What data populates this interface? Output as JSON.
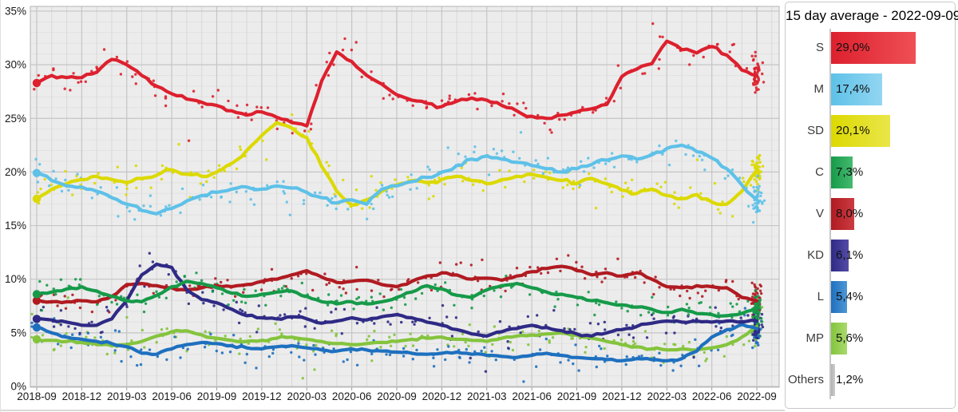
{
  "legend": {
    "title": "15 day average - 2022-09-09",
    "entries": [
      {
        "label": "S",
        "value": "29,0%",
        "value_num": 29.0,
        "color": "#dd202e",
        "color_light": "#ef4f55"
      },
      {
        "label": "M",
        "value": "17,4%",
        "value_num": 17.4,
        "color": "#5ec1e8",
        "color_light": "#92d6f2"
      },
      {
        "label": "SD",
        "value": "20,1%",
        "value_num": 20.1,
        "color": "#dcd900",
        "color_light": "#eae64a"
      },
      {
        "label": "C",
        "value": "7,3%",
        "value_num": 7.3,
        "color": "#169a49",
        "color_light": "#45ba70"
      },
      {
        "label": "V",
        "value": "8,0%",
        "value_num": 8.0,
        "color": "#b01b21",
        "color_light": "#cb3b41"
      },
      {
        "label": "KD",
        "value": "6,1%",
        "value_num": 6.1,
        "color": "#2f2a85",
        "color_light": "#534ba6"
      },
      {
        "label": "L",
        "value": "5,4%",
        "value_num": 5.4,
        "color": "#1e70bf",
        "color_light": "#4e97d4"
      },
      {
        "label": "MP",
        "value": "5,6%",
        "value_num": 5.6,
        "color": "#84c43d",
        "color_light": "#a8da6d"
      },
      {
        "label": "Others",
        "value": "1,2%",
        "value_num": 1.2,
        "color": "#b2b2b2",
        "color_light": "#cdcdcd"
      }
    ]
  },
  "chart_data": {
    "type": "line",
    "title": "",
    "xlabel": "",
    "ylabel": "",
    "ylim": [
      0,
      35
    ],
    "grid": true,
    "legend_position": "right",
    "background": "#ececec",
    "y_tick_labels": [
      "0%",
      "5%",
      "10%",
      "15%",
      "20%",
      "25%",
      "30%",
      "35%"
    ],
    "x_tick_labels": [
      "2018-09",
      "2018-12",
      "2019-03",
      "2019-06",
      "2019-09",
      "2019-12",
      "2020-03",
      "2020-06",
      "2020-09",
      "2020-12",
      "2021-03",
      "2021-06",
      "2021-09",
      "2021-12",
      "2022-03",
      "2022-06",
      "2022-09"
    ],
    "x": [
      "2018-09",
      "2018-10",
      "2018-11",
      "2018-12",
      "2019-01",
      "2019-02",
      "2019-03",
      "2019-04",
      "2019-05",
      "2019-06",
      "2019-07",
      "2019-08",
      "2019-09",
      "2019-10",
      "2019-11",
      "2019-12",
      "2020-01",
      "2020-02",
      "2020-03",
      "2020-04",
      "2020-05",
      "2020-06",
      "2020-07",
      "2020-08",
      "2020-09",
      "2020-10",
      "2020-11",
      "2020-12",
      "2021-01",
      "2021-02",
      "2021-03",
      "2021-04",
      "2021-05",
      "2021-06",
      "2021-07",
      "2021-08",
      "2021-09",
      "2021-10",
      "2021-11",
      "2021-12",
      "2022-01",
      "2022-02",
      "2022-03",
      "2022-04",
      "2022-05",
      "2022-06",
      "2022-07",
      "2022-08",
      "2022-09"
    ],
    "series": [
      {
        "name": "S",
        "color": "#dd202e",
        "values": [
          28.3,
          29.0,
          28.8,
          28.8,
          29.3,
          30.5,
          30.0,
          29.0,
          28.0,
          27.3,
          26.8,
          26.5,
          26.2,
          25.7,
          25.3,
          25.6,
          25.1,
          24.6,
          24.3,
          28.5,
          31.2,
          30.3,
          29.0,
          28.2,
          27.2,
          26.7,
          26.4,
          26.1,
          26.6,
          26.9,
          26.7,
          26.2,
          25.7,
          25.2,
          25.0,
          25.3,
          25.6,
          25.9,
          26.3,
          28.9,
          29.6,
          30.1,
          32.2,
          31.4,
          31.1,
          31.7,
          30.9,
          29.5,
          29.0
        ]
      },
      {
        "name": "M",
        "color": "#5ec1e8",
        "values": [
          19.9,
          19.2,
          18.7,
          18.6,
          18.2,
          17.6,
          17.0,
          16.4,
          16.1,
          16.6,
          17.3,
          17.8,
          18.1,
          18.4,
          18.6,
          18.4,
          18.7,
          18.5,
          18.1,
          17.6,
          17.1,
          17.4,
          17.0,
          18.4,
          18.7,
          19.1,
          19.5,
          20.0,
          20.6,
          21.2,
          21.5,
          21.2,
          20.9,
          20.6,
          20.3,
          20.0,
          20.3,
          20.7,
          21.1,
          21.5,
          21.2,
          21.6,
          22.2,
          22.5,
          21.9,
          21.3,
          20.3,
          18.8,
          17.4
        ]
      },
      {
        "name": "SD",
        "color": "#dcd900",
        "values": [
          17.5,
          18.4,
          18.9,
          19.3,
          19.6,
          19.3,
          19.0,
          19.4,
          19.7,
          20.2,
          19.8,
          19.6,
          20.0,
          20.8,
          22.0,
          23.4,
          24.6,
          24.1,
          23.2,
          20.5,
          18.2,
          16.9,
          17.4,
          18.2,
          18.8,
          19.2,
          19.0,
          19.3,
          19.6,
          19.2,
          18.9,
          19.3,
          19.6,
          19.8,
          19.5,
          19.2,
          18.9,
          19.4,
          18.9,
          18.3,
          18.0,
          18.4,
          17.8,
          17.5,
          17.9,
          17.2,
          17.0,
          18.2,
          20.1
        ]
      },
      {
        "name": "C",
        "color": "#169a49",
        "values": [
          8.6,
          8.8,
          9.1,
          9.3,
          8.9,
          8.4,
          8.0,
          7.9,
          8.5,
          9.3,
          9.8,
          9.6,
          9.2,
          8.7,
          8.4,
          8.6,
          8.8,
          8.9,
          8.4,
          7.9,
          7.7,
          7.9,
          7.7,
          7.9,
          8.3,
          8.8,
          9.4,
          9.1,
          8.5,
          8.3,
          9.0,
          9.4,
          9.6,
          9.2,
          8.8,
          8.6,
          8.3,
          8.0,
          7.8,
          7.6,
          7.4,
          7.2,
          6.9,
          7.2,
          6.8,
          6.7,
          6.6,
          6.8,
          7.3
        ]
      },
      {
        "name": "V",
        "color": "#b01b21",
        "values": [
          8.0,
          7.9,
          7.9,
          8.0,
          7.9,
          8.4,
          9.5,
          9.6,
          9.4,
          9.2,
          9.0,
          9.2,
          9.4,
          9.3,
          9.5,
          9.8,
          10.0,
          10.4,
          10.8,
          10.2,
          9.7,
          9.8,
          9.9,
          9.5,
          9.3,
          9.8,
          10.3,
          10.6,
          10.4,
          10.0,
          10.1,
          9.9,
          10.3,
          10.7,
          11.0,
          11.2,
          10.8,
          10.4,
          10.6,
          10.3,
          10.6,
          10.0,
          9.3,
          9.2,
          9.4,
          9.3,
          9.2,
          8.3,
          8.0
        ]
      },
      {
        "name": "KD",
        "color": "#2f2a85",
        "values": [
          6.3,
          6.2,
          6.0,
          5.7,
          5.7,
          6.3,
          8.0,
          10.4,
          11.4,
          11.1,
          9.0,
          8.1,
          7.8,
          7.2,
          6.6,
          6.4,
          6.3,
          6.5,
          6.3,
          5.9,
          6.1,
          6.4,
          6.2,
          6.5,
          6.7,
          6.4,
          6.0,
          5.7,
          5.3,
          4.9,
          4.7,
          5.1,
          5.4,
          5.7,
          5.5,
          5.2,
          4.9,
          4.7,
          5.0,
          5.3,
          5.6,
          5.9,
          6.1,
          6.0,
          6.1,
          6.0,
          6.1,
          6.0,
          6.1
        ]
      },
      {
        "name": "L",
        "color": "#1e70bf",
        "values": [
          5.5,
          5.0,
          4.6,
          4.4,
          4.2,
          4.0,
          3.7,
          3.1,
          3.0,
          3.5,
          3.9,
          4.1,
          4.0,
          3.8,
          3.6,
          3.5,
          3.7,
          3.8,
          3.6,
          3.4,
          3.3,
          3.5,
          3.4,
          3.3,
          3.2,
          3.1,
          3.0,
          3.1,
          3.2,
          3.0,
          2.9,
          2.8,
          2.7,
          2.9,
          3.1,
          2.9,
          2.7,
          2.6,
          2.5,
          2.4,
          2.6,
          2.5,
          2.4,
          2.6,
          3.3,
          4.6,
          5.3,
          5.8,
          5.4
        ]
      },
      {
        "name": "MP",
        "color": "#84c43d",
        "values": [
          4.4,
          4.3,
          4.2,
          4.1,
          3.9,
          3.8,
          3.9,
          4.2,
          4.7,
          5.1,
          5.2,
          4.8,
          4.5,
          4.3,
          4.2,
          4.3,
          4.5,
          4.6,
          4.4,
          4.2,
          4.0,
          3.9,
          4.0,
          4.1,
          4.2,
          4.4,
          4.5,
          4.6,
          4.4,
          4.3,
          4.2,
          4.5,
          4.7,
          4.8,
          4.9,
          5.0,
          4.8,
          4.5,
          4.2,
          3.9,
          3.7,
          3.5,
          3.4,
          3.5,
          3.4,
          3.6,
          3.9,
          4.6,
          5.6
        ]
      }
    ]
  }
}
